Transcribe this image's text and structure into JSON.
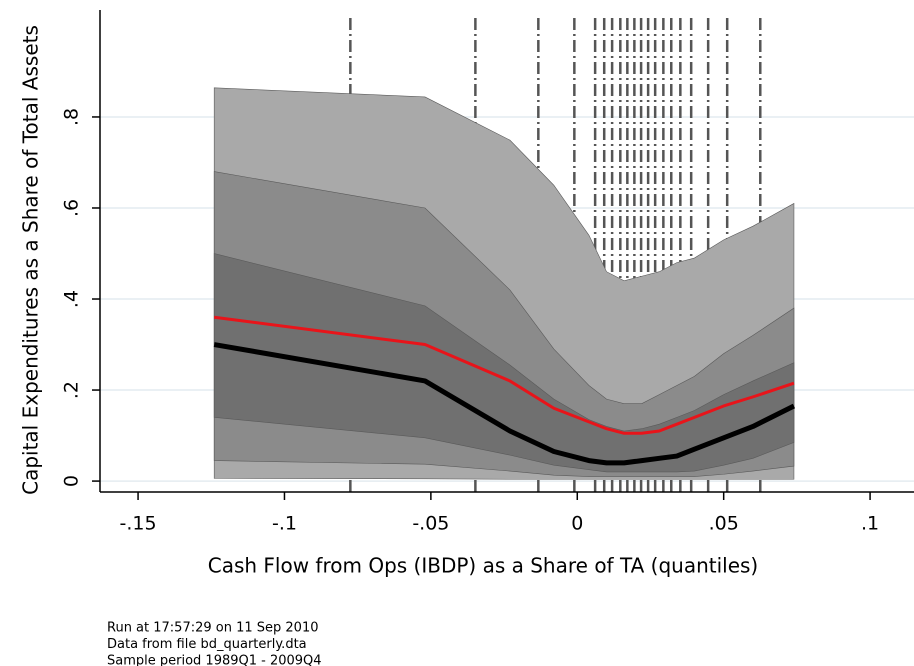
{
  "chart_data": {
    "type": "line",
    "xlabel": "Cash Flow from Ops (IBDP) as a Share of TA (quantiles)",
    "ylabel": "Capital Expenditures as a Share of Total Assets",
    "xlim": [
      -0.163,
      0.115
    ],
    "ylim": [
      -0.024,
      1.035
    ],
    "xticks": [
      {
        "value": -0.15,
        "label": "-.15"
      },
      {
        "value": -0.1,
        "label": "-.1"
      },
      {
        "value": -0.05,
        "label": "-.05"
      },
      0,
      {
        "value": 0.05,
        "label": ".05"
      },
      {
        "value": 0.1,
        "label": ".1"
      }
    ],
    "yticks": [
      0,
      {
        "value": 0.2,
        "label": ".2"
      },
      {
        "value": 0.4,
        "label": ".4"
      },
      {
        "value": 0.6,
        "label": ".6"
      },
      {
        "value": 0.8,
        "label": ".8"
      }
    ],
    "grid": true,
    "x": [
      -0.124,
      -0.052,
      -0.023,
      -0.008,
      0.004,
      0.01,
      0.016,
      0.022,
      0.028,
      0.034,
      0.04,
      0.05,
      0.06,
      0.074
    ],
    "bands": [
      {
        "color": "#a9a9a9",
        "lower": [
          0.006,
          0.005,
          0.004,
          0.004,
          0.004,
          0.004,
          0.004,
          0.004,
          0.004,
          0.004,
          0.004,
          0.004,
          0.004,
          0.004
        ],
        "upper": [
          0.864,
          0.844,
          0.749,
          0.65,
          0.54,
          0.46,
          0.44,
          0.45,
          0.46,
          0.48,
          0.49,
          0.53,
          0.56,
          0.61
        ]
      },
      {
        "color": "#8b8b8b",
        "lower": [
          0.045,
          0.037,
          0.022,
          0.013,
          0.01,
          0.01,
          0.01,
          0.01,
          0.01,
          0.01,
          0.01,
          0.015,
          0.022,
          0.033
        ],
        "upper": [
          0.68,
          0.6,
          0.42,
          0.29,
          0.21,
          0.18,
          0.17,
          0.17,
          0.19,
          0.21,
          0.23,
          0.28,
          0.32,
          0.38
        ]
      },
      {
        "color": "#707070",
        "lower": [
          0.14,
          0.095,
          0.057,
          0.035,
          0.025,
          0.02,
          0.02,
          0.02,
          0.02,
          0.02,
          0.022,
          0.035,
          0.05,
          0.085
        ],
        "upper": [
          0.5,
          0.385,
          0.255,
          0.18,
          0.135,
          0.12,
          0.11,
          0.115,
          0.125,
          0.14,
          0.155,
          0.19,
          0.22,
          0.26
        ]
      }
    ],
    "series": [
      {
        "color": "#e8141a",
        "width": 3,
        "values": [
          0.36,
          0.3,
          0.22,
          0.16,
          0.13,
          0.115,
          0.105,
          0.105,
          0.11,
          0.125,
          0.14,
          0.165,
          0.185,
          0.215
        ]
      },
      {
        "color": "#000000",
        "width": 5,
        "values": [
          0.3,
          0.22,
          0.11,
          0.065,
          0.045,
          0.04,
          0.04,
          0.045,
          0.05,
          0.055,
          0.07,
          0.095,
          0.12,
          0.165
        ]
      }
    ],
    "vlines": [
      -0.0775,
      -0.0348,
      -0.0133,
      -0.001,
      0.0061,
      0.0092,
      0.0119,
      0.0147,
      0.0171,
      0.0195,
      0.0218,
      0.0242,
      0.0266,
      0.0294,
      0.0321,
      0.0352,
      0.0389,
      0.0447,
      0.0512,
      0.0625
    ],
    "vline_color": "#555555",
    "notes": [
      "Run at 17:57:29 on 11 Sep 2010",
      "Data from file bd_quarterly.dta",
      "Sample period 1989Q1 - 2009Q4"
    ]
  }
}
